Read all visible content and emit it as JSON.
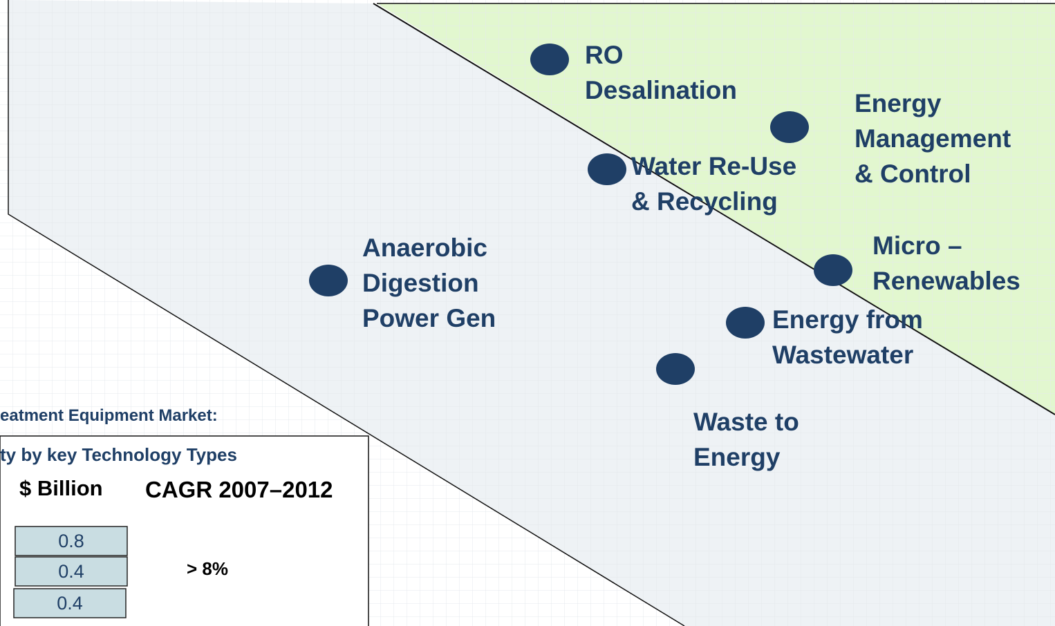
{
  "nodes": [
    {
      "label": [
        "RO",
        "Desalination"
      ]
    },
    {
      "label": [
        "Energy",
        "Management",
        "& Control"
      ]
    },
    {
      "label": [
        "Water Re-Use",
        "& Recycling"
      ]
    },
    {
      "label": [
        "Anaerobic",
        "Digestion",
        "Power Gen"
      ]
    },
    {
      "label": [
        "Micro –",
        "Renewables"
      ]
    },
    {
      "label": [
        "Energy from",
        "Wastewater"
      ]
    },
    {
      "label": [
        "Waste to",
        "Energy"
      ]
    }
  ],
  "legend": {
    "title": "eatment Equipment Market:",
    "subtitle": "ty by key Technology Types",
    "column_headers": [
      "$ Billion",
      "CAGR 2007–2012"
    ],
    "values": [
      "0.8",
      "0.4",
      "0.4"
    ],
    "cagr": "> 8%"
  }
}
